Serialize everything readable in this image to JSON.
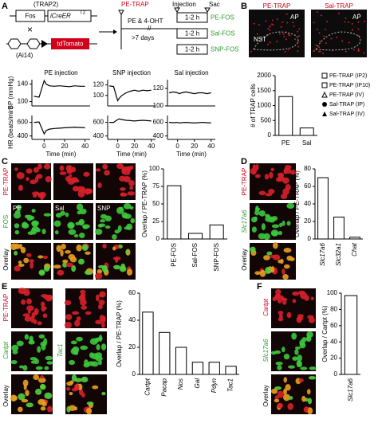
{
  "figure": {
    "panel_labels": [
      "A",
      "B",
      "C",
      "D",
      "E",
      "F"
    ],
    "schematic": {
      "trap2": "(TRAP2)",
      "fos": "Fos",
      "icreer": "iCreER",
      "icreer_sup": "T2",
      "ai14": "(Ai14)",
      "tdtomato": "tdTomato",
      "pe_trap": "PE-TRAP",
      "treatment": "PE & 4-OHT",
      "wait": ">7 days",
      "injection": "Injection",
      "sac": "Sac",
      "intervals": [
        "1-2 h",
        "1-2 h",
        "1-2 h"
      ],
      "groups": [
        "PE-FOS",
        "Sal-FOS",
        "SNP-FOS"
      ]
    },
    "B": {
      "images": [
        "PE-TRAP",
        "Sal-TRAP"
      ],
      "regions": [
        "AP",
        "NST",
        "AP"
      ],
      "legend": [
        "PE-TRAP (IP2)",
        "PE-TRAP (IP10)",
        "PE-TRAP (IV)",
        "Sal-TRAP (IP)",
        "Sal-TRAP (IV)"
      ]
    },
    "C": {
      "rows": [
        "PE-TRAP",
        "FOS",
        "Overlay"
      ],
      "columns": [
        "PE",
        "Sal",
        "SNP"
      ]
    },
    "D": {
      "rows": [
        "PE-TRAP",
        "Slc17a6",
        "Overlay"
      ]
    },
    "E": {
      "rows": [
        "PE-TRAP",
        "Cartpt",
        "Overlay"
      ],
      "second": "Tac1"
    },
    "F": {
      "rows": [
        "Cartpt",
        "Slc17a6",
        "Overlay"
      ]
    }
  },
  "chart_data": [
    {
      "type": "line",
      "title": "PE injection",
      "ylabel": "BP (mmHg)",
      "x": [
        -10,
        -5,
        0,
        2,
        5,
        10,
        15,
        20,
        25,
        30,
        35,
        40
      ],
      "values": [
        112,
        110,
        148,
        140,
        136,
        135,
        136,
        135,
        134,
        136,
        135,
        135
      ],
      "xlim": [
        -12,
        45
      ],
      "ylim": [
        90,
        150
      ],
      "yticks": [
        100,
        140
      ]
    },
    {
      "type": "line",
      "title": "SNP injection",
      "x": [
        -10,
        -5,
        0,
        2,
        5,
        10,
        15,
        20,
        25,
        30,
        35,
        40
      ],
      "values": [
        118,
        117,
        90,
        95,
        100,
        105,
        108,
        110,
        108,
        110,
        109,
        110
      ],
      "xlim": [
        -12,
        45
      ],
      "ylim": [
        80,
        130
      ],
      "yticks": [
        100,
        120
      ]
    },
    {
      "type": "line",
      "title": "Sal injection",
      "x": [
        -10,
        -5,
        0,
        2,
        5,
        10,
        15,
        20,
        25,
        30,
        35,
        40
      ],
      "values": [
        115,
        116,
        115,
        114,
        115,
        116,
        115,
        114,
        115,
        115,
        114,
        115
      ],
      "xlim": [
        -12,
        45
      ],
      "ylim": [
        100,
        130
      ],
      "yticks": [
        100,
        120
      ]
    },
    {
      "type": "line",
      "ylabel": "HR (beats/min)",
      "xlabel": "Time (min)",
      "x": [
        -10,
        -5,
        0,
        2,
        5,
        10,
        15,
        20,
        25,
        30,
        35,
        40
      ],
      "values": [
        600,
        605,
        430,
        480,
        500,
        510,
        515,
        520,
        525,
        530,
        525,
        520
      ],
      "xlim": [
        -12,
        45
      ],
      "xticks": [
        0,
        20,
        40
      ],
      "ylim": [
        350,
        700
      ],
      "yticks": [
        400,
        600
      ]
    },
    {
      "type": "line",
      "xlabel": "Time (min)",
      "x": [
        -10,
        -5,
        0,
        2,
        5,
        10,
        15,
        20,
        25,
        30,
        35,
        40
      ],
      "values": [
        600,
        600,
        640,
        650,
        640,
        630,
        625,
        620,
        625,
        630,
        625,
        620
      ],
      "xlim": [
        -12,
        45
      ],
      "xticks": [
        0,
        20,
        40
      ],
      "ylim": [
        350,
        700
      ],
      "yticks": [
        400,
        600
      ]
    },
    {
      "type": "line",
      "xlabel": "Time (min)",
      "x": [
        -10,
        -5,
        0,
        2,
        5,
        10,
        15,
        20,
        25,
        30,
        35,
        40
      ],
      "values": [
        600,
        595,
        600,
        590,
        595,
        600,
        595,
        590,
        595,
        600,
        595,
        590
      ],
      "xlim": [
        -12,
        45
      ],
      "xticks": [
        0,
        20,
        40
      ],
      "ylim": [
        350,
        700
      ],
      "yticks": [
        400,
        600
      ]
    },
    {
      "type": "bar",
      "ylabel": "# of TRAP cells",
      "categories": [
        "PE",
        "Sal"
      ],
      "values": [
        1300,
        250
      ],
      "ylim": [
        0,
        2000
      ],
      "yticks": [
        0,
        500,
        1000,
        1500,
        2000
      ],
      "color": "#ffffff"
    },
    {
      "type": "bar",
      "ylabel": "Overlap / PE-TRAP (%)",
      "categories": [
        "PE-FOS",
        "Sal-FOS",
        "SNP-FOS"
      ],
      "values": [
        76,
        8,
        20
      ],
      "ylim": [
        0,
        100
      ],
      "yticks": [
        0,
        25,
        50,
        75,
        100
      ],
      "color": "#ffffff",
      "rotate_labels": true
    },
    {
      "type": "bar",
      "ylabel": "Overlap / PE-TRAP (%)",
      "categories": [
        "Slc17a6",
        "Slc32a1",
        "Chat"
      ],
      "values": [
        70,
        25,
        2
      ],
      "ylim": [
        0,
        80
      ],
      "yticks": [
        0,
        20,
        40,
        60,
        80
      ],
      "color": "#ffffff",
      "rotate_labels": true,
      "italic_labels": true
    },
    {
      "type": "bar",
      "ylabel": "Overlap / PE-TRAP (%)",
      "categories": [
        "Cartpt",
        "Pacap",
        "Nos",
        "Gal",
        "Pdyn",
        "Tac1"
      ],
      "values": [
        46,
        31,
        20,
        9,
        9,
        6
      ],
      "ylim": [
        0,
        60
      ],
      "yticks": [
        0,
        20,
        40,
        60
      ],
      "color": "#ffffff",
      "rotate_labels": true,
      "italic_labels": true
    },
    {
      "type": "bar",
      "ylabel": "Overlap / Cartpt (%)",
      "categories": [
        "Slc17a6"
      ],
      "values": [
        97
      ],
      "ylim": [
        0,
        100
      ],
      "yticks": [
        0,
        20,
        40,
        60,
        80,
        100
      ],
      "color": "#ffffff",
      "rotate_labels": true,
      "italic_labels": true
    }
  ]
}
